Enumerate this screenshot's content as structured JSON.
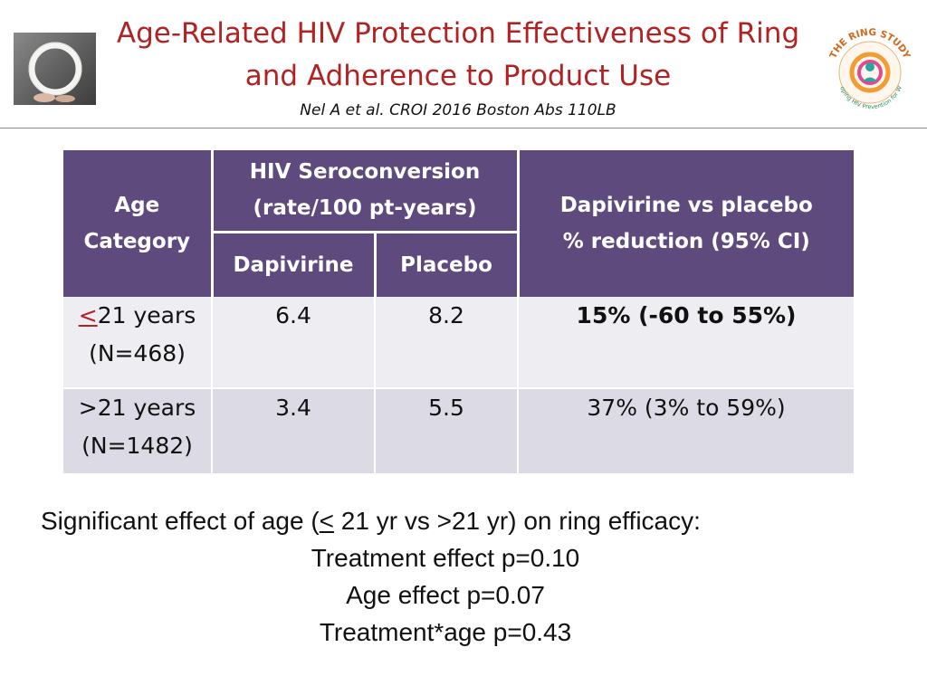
{
  "header": {
    "title_line1": "Age-Related HIV Protection Effectiveness of Ring",
    "title_line2": "and Adherence to Product Use",
    "citation": "Nel A et al. CROI 2016 Boston Abs 110LB"
  },
  "logo": {
    "text": "THE RING STUDY",
    "subtext": "Developing HIV Prevention for Women"
  },
  "table": {
    "header": {
      "age_line1": "Age",
      "age_line2": "Category",
      "sero_line1": "HIV Seroconversion",
      "sero_line2": "(rate/100 pt-years)",
      "dapivirine": "Dapivirine",
      "placebo": "Placebo",
      "reduction_line1": "Dapivirine vs placebo",
      "reduction_line2": "% reduction (95% CI)"
    },
    "rows": [
      {
        "age_symbol": "<",
        "age_label": "21 years",
        "n": "(N=468)",
        "dapivirine": "6.4",
        "placebo": "8.2",
        "reduction": "15% (-60 to 55%)"
      },
      {
        "age_symbol": ">",
        "age_label": "21 years",
        "n": "(N=1482)",
        "dapivirine": "3.4",
        "placebo": "5.5",
        "reduction": "37% (3% to 59%)"
      }
    ]
  },
  "notes": {
    "line1_a": "Significant effect of age (",
    "line1_sym": "<",
    "line1_b": " 21 yr vs >21 yr)  on ring efficacy:",
    "line2": "Treatment effect p=0.10",
    "line3": "Age effect p=0.07",
    "line4": "Treatment*age p=0.43"
  },
  "colors": {
    "title": "#b22222",
    "header_bg": "#5f4a7e",
    "row1_bg": "#eeedf2",
    "row2_bg": "#dcdbe5"
  }
}
